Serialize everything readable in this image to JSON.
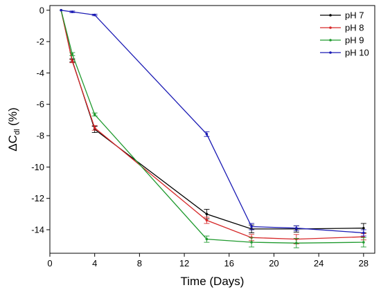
{
  "chart_data": {
    "type": "line",
    "xlabel": "Time (Days)",
    "ylabel": {
      "prefix": "ΔC",
      "subscript": "dl",
      "suffix": " (%)"
    },
    "xlim": [
      0,
      29
    ],
    "ylim": [
      -15.5,
      0.3
    ],
    "xticks": [
      0,
      4,
      8,
      12,
      16,
      20,
      24,
      28
    ],
    "yticks": [
      0,
      -2,
      -4,
      -6,
      -8,
      -10,
      -12,
      -14
    ],
    "x": [
      1,
      2,
      4,
      14,
      18,
      22,
      28
    ],
    "legend_position": "top-right",
    "series": [
      {
        "name": "pH 7",
        "color": "#000000",
        "values": [
          0,
          -3.2,
          -7.6,
          -13.0,
          -13.95,
          -13.95,
          -13.9
        ],
        "errors": [
          0,
          0.1,
          0.2,
          0.3,
          0.25,
          0.2,
          0.3
        ]
      },
      {
        "name": "pH 8",
        "color": "#d62728",
        "values": [
          0,
          -3.25,
          -7.5,
          -13.4,
          -14.5,
          -14.6,
          -14.45
        ],
        "errors": [
          0,
          0.1,
          0.15,
          0.2,
          0.2,
          0.3,
          0.2
        ]
      },
      {
        "name": "pH 9",
        "color": "#1f9a2e",
        "values": [
          0,
          -2.8,
          -6.65,
          -14.6,
          -14.8,
          -14.85,
          -14.8
        ],
        "errors": [
          0,
          0.1,
          0.1,
          0.2,
          0.3,
          0.3,
          0.3
        ]
      },
      {
        "name": "pH 10",
        "color": "#1a1ab4",
        "values": [
          0,
          -0.1,
          -0.3,
          -7.9,
          -13.8,
          -13.9,
          -14.2
        ],
        "errors": [
          0,
          0.05,
          0.05,
          0.15,
          0.2,
          0.15,
          0.2
        ]
      }
    ]
  }
}
